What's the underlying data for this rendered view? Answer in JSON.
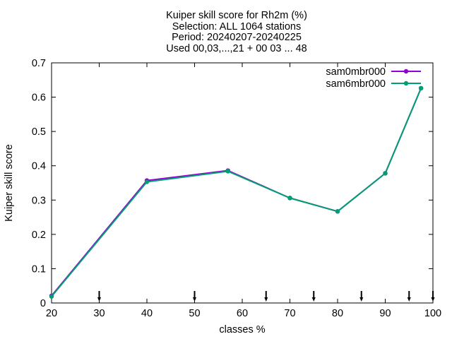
{
  "chart_data": {
    "type": "line",
    "title_lines": [
      "Kuiper skill score  for Rh2m (%)",
      "Selection: ALL   1064 stations",
      "Period: 20240207-20240225",
      "Used 00,03,...,21 + 00 03 ... 48"
    ],
    "xlabel": "classes %",
    "ylabel": "Kuiper skill score",
    "xlim": [
      20,
      100
    ],
    "ylim": [
      0,
      0.7
    ],
    "xticks": [
      "20",
      "30",
      "40",
      "50",
      "60",
      "70",
      "80",
      "90",
      "100"
    ],
    "yticks": [
      "0",
      "0.1",
      "0.2",
      "0.3",
      "0.4",
      "0.5",
      "0.6",
      "0.7"
    ],
    "grid": false,
    "legend_position": "top-right",
    "class_markers": [
      30,
      50,
      65,
      75,
      85,
      95,
      100
    ],
    "series": [
      {
        "name": "sam0mbr000",
        "color": "#9400d3",
        "x": [
          20,
          40,
          57,
          70,
          80,
          90,
          97.5
        ],
        "y": [
          0.021,
          0.357,
          0.386,
          0.306,
          0.267,
          0.378,
          0.626
        ]
      },
      {
        "name": "sam6mbr000",
        "color": "#009e73",
        "x": [
          20,
          40,
          57,
          70,
          80,
          90,
          97.5
        ],
        "y": [
          0.019,
          0.353,
          0.384,
          0.306,
          0.267,
          0.378,
          0.626
        ]
      }
    ]
  }
}
